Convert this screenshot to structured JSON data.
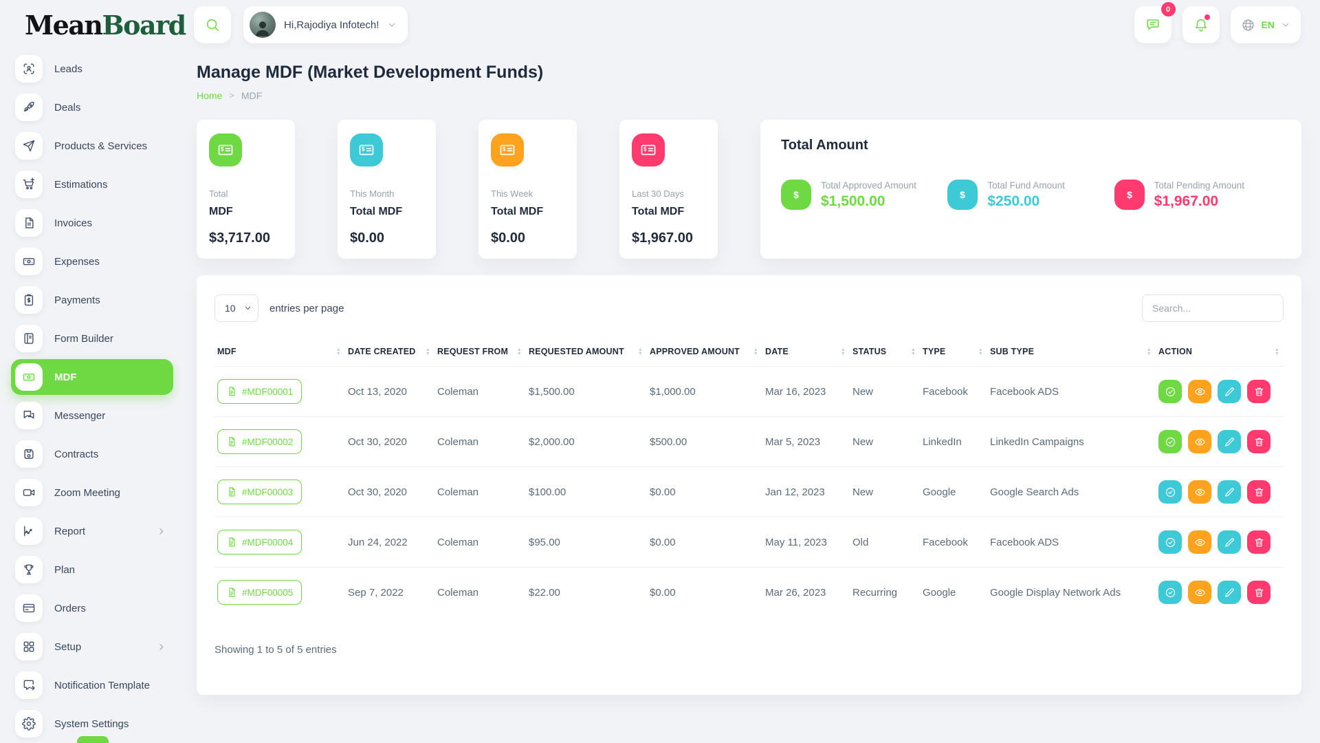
{
  "header": {
    "logo": {
      "part1": "Mean",
      "part2": "Board"
    },
    "greeting": "Hi,Rajodiya Infotech!",
    "messages_badge": "0",
    "language": "EN"
  },
  "page": {
    "title": "Manage MDF (Market Development Funds)"
  },
  "breadcrumb": {
    "home": "Home",
    "current": "MDF"
  },
  "sidebar": {
    "items": [
      {
        "label": "Leads",
        "icon": "scan-icon"
      },
      {
        "label": "Deals",
        "icon": "rocket-icon"
      },
      {
        "label": "Products & Services",
        "icon": "send-icon"
      },
      {
        "label": "Estimations",
        "icon": "cart-plus-icon"
      },
      {
        "label": "Invoices",
        "icon": "file-icon"
      },
      {
        "label": "Expenses",
        "icon": "banknote-icon"
      },
      {
        "label": "Payments",
        "icon": "clipboard-dollar-icon"
      },
      {
        "label": "Form Builder",
        "icon": "notebook-icon"
      },
      {
        "label": "MDF",
        "icon": "money-icon",
        "active": true
      },
      {
        "label": "Messenger",
        "icon": "messenger-icon"
      },
      {
        "label": "Contracts",
        "icon": "save-icon"
      },
      {
        "label": "Zoom Meeting",
        "icon": "video-icon"
      },
      {
        "label": "Report",
        "icon": "chart-icon",
        "chevron": true
      },
      {
        "label": "Plan",
        "icon": "trophy-icon"
      },
      {
        "label": "Orders",
        "icon": "credit-card-icon"
      },
      {
        "label": "Setup",
        "icon": "grid-icon",
        "chevron": true
      },
      {
        "label": "Notification Template",
        "icon": "message-template-icon"
      },
      {
        "label": "System Settings",
        "icon": "gear-icon"
      }
    ]
  },
  "summary_cards": [
    {
      "period": "Total",
      "label": "MDF",
      "value": "$3,717.00",
      "color": "#6fd943"
    },
    {
      "period": "This Month",
      "label": "Total MDF",
      "value": "$0.00",
      "color": "#3ec9d6"
    },
    {
      "period": "This Week",
      "label": "Total MDF",
      "value": "$0.00",
      "color": "#ffa21d"
    },
    {
      "period": "Last 30 Days",
      "label": "Total MDF",
      "value": "$1,967.00",
      "color": "#ff3a6e"
    }
  ],
  "total_amount": {
    "title": "Total Amount",
    "items": [
      {
        "label": "Total Approved Amount",
        "value": "$1,500.00",
        "color": "#6fd943"
      },
      {
        "label": "Total Fund Amount",
        "value": "$250.00",
        "color": "#3ec9d6"
      },
      {
        "label": "Total Pending Amount",
        "value": "$1,967.00",
        "color": "#ff3a6e"
      }
    ]
  },
  "table": {
    "entries_value": "10",
    "entries_label": "entries per page",
    "search_placeholder": "Search...",
    "columns": [
      "MDF",
      "DATE CREATED",
      "REQUEST FROM",
      "REQUESTED AMOUNT",
      "APPROVED AMOUNT",
      "DATE",
      "STATUS",
      "TYPE",
      "SUB TYPE",
      "ACTION"
    ],
    "rows": [
      {
        "mdf": "#MDF00001",
        "date_created": "Oct 13, 2020",
        "request_from": "Coleman",
        "requested_amount": "$1,500.00",
        "approved_amount": "$1,000.00",
        "date": "Mar 16, 2023",
        "status": "New",
        "type": "Facebook",
        "sub_type": "Facebook ADS",
        "actions": [
          "green",
          "orange",
          "cyan",
          "pink"
        ]
      },
      {
        "mdf": "#MDF00002",
        "date_created": "Oct 30, 2020",
        "request_from": "Coleman",
        "requested_amount": "$2,000.00",
        "approved_amount": "$500.00",
        "date": "Mar 5, 2023",
        "status": "New",
        "type": "LinkedIn",
        "sub_type": "LinkedIn Campaigns",
        "actions": [
          "green",
          "orange",
          "cyan",
          "pink"
        ]
      },
      {
        "mdf": "#MDF00003",
        "date_created": "Oct 30, 2020",
        "request_from": "Coleman",
        "requested_amount": "$100.00",
        "approved_amount": "$0.00",
        "date": "Jan 12, 2023",
        "status": "New",
        "type": "Google",
        "sub_type": "Google Search Ads",
        "actions": [
          "cyan",
          "orange",
          "cyan",
          "pink"
        ]
      },
      {
        "mdf": "#MDF00004",
        "date_created": "Jun 24, 2022",
        "request_from": "Coleman",
        "requested_amount": "$95.00",
        "approved_amount": "$0.00",
        "date": "May 11, 2023",
        "status": "Old",
        "type": "Facebook",
        "sub_type": "Facebook ADS",
        "actions": [
          "cyan",
          "orange",
          "cyan",
          "pink"
        ]
      },
      {
        "mdf": "#MDF00005",
        "date_created": "Sep 7, 2022",
        "request_from": "Coleman",
        "requested_amount": "$22.00",
        "approved_amount": "$0.00",
        "date": "Mar 26, 2023",
        "status": "Recurring",
        "type": "Google",
        "sub_type": "Google Display Network Ads",
        "actions": [
          "cyan",
          "orange",
          "cyan",
          "pink"
        ]
      }
    ],
    "footer": "Showing 1 to 5 of 5 entries"
  },
  "colors": {
    "green": "#6fd943",
    "cyan": "#3ec9d6",
    "orange": "#ffa21d",
    "pink": "#ff3a6e",
    "logo_green": "#1e5f3b"
  }
}
